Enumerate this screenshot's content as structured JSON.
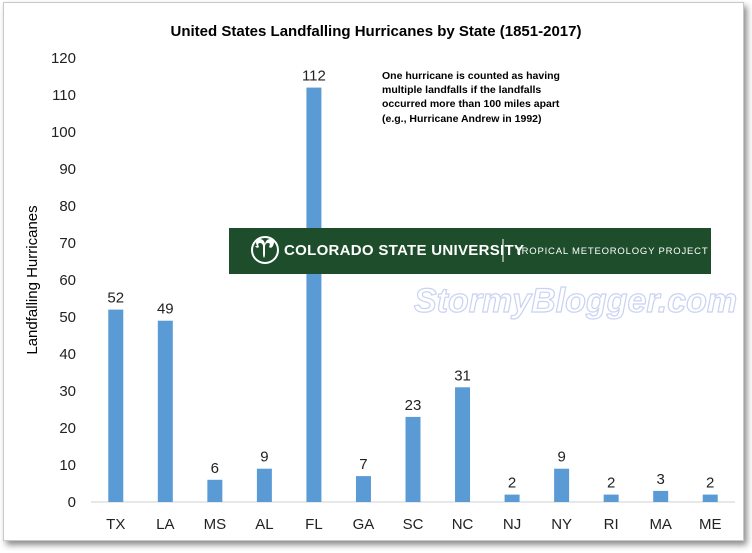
{
  "chart_data": {
    "type": "bar",
    "title": "United States Landfalling Hurricanes by State (1851-2017)",
    "ylabel": "Landfalling Hurricanes",
    "xlabel": "",
    "ylim": [
      0,
      120
    ],
    "ytick_step": 10,
    "categories": [
      "TX",
      "LA",
      "MS",
      "AL",
      "FL",
      "GA",
      "SC",
      "NC",
      "NJ",
      "NY",
      "RI",
      "MA",
      "ME"
    ],
    "values": [
      52,
      49,
      6,
      9,
      112,
      7,
      23,
      31,
      2,
      9,
      2,
      3,
      2
    ],
    "bar_color": "#5b9bd5",
    "grid": false,
    "legend": "none",
    "annotation": [
      "One hurricane is counted as having",
      "multiple landfalls if the landfalls",
      "occurred more than 100  miles apart",
      "(e.g., Hurricane Andrew in 1992)"
    ]
  },
  "banner": {
    "title": "COLORADO STATE UNIVERSITY",
    "subtitle": "TROPICAL METEOROLOGY PROJECT",
    "color": "#1e4d2b"
  },
  "watermark": "StormyBlogger.com"
}
